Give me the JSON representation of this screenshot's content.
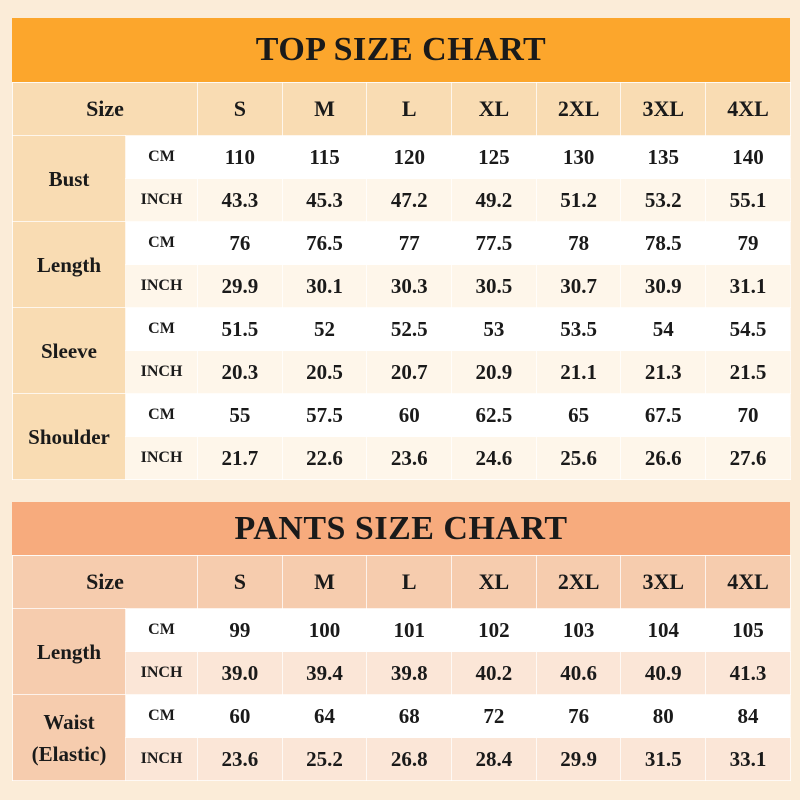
{
  "colors": {
    "top_header": "#fca62c",
    "top_accent": "#f9dcb3",
    "pants_header": "#f7ab7d",
    "pants_accent": "#f6ccae",
    "background": "#fbecd8"
  },
  "sizes": [
    "S",
    "M",
    "L",
    "XL",
    "2XL",
    "3XL",
    "4XL"
  ],
  "top": {
    "title": "TOP SIZE CHART",
    "size_label": "Size",
    "rows": [
      {
        "label": "Bust",
        "cm_unit": "CM",
        "inch_unit": "INCH",
        "cm": [
          "110",
          "115",
          "120",
          "125",
          "130",
          "135",
          "140"
        ],
        "inch": [
          "43.3",
          "45.3",
          "47.2",
          "49.2",
          "51.2",
          "53.2",
          "55.1"
        ]
      },
      {
        "label": "Length",
        "cm_unit": "CM",
        "inch_unit": "INCH",
        "cm": [
          "76",
          "76.5",
          "77",
          "77.5",
          "78",
          "78.5",
          "79"
        ],
        "inch": [
          "29.9",
          "30.1",
          "30.3",
          "30.5",
          "30.7",
          "30.9",
          "31.1"
        ]
      },
      {
        "label": "Sleeve",
        "cm_unit": "CM",
        "inch_unit": "INCH",
        "cm": [
          "51.5",
          "52",
          "52.5",
          "53",
          "53.5",
          "54",
          "54.5"
        ],
        "inch": [
          "20.3",
          "20.5",
          "20.7",
          "20.9",
          "21.1",
          "21.3",
          "21.5"
        ]
      },
      {
        "label": "Shoulder",
        "cm_unit": "CM",
        "inch_unit": "INCH",
        "cm": [
          "55",
          "57.5",
          "60",
          "62.5",
          "65",
          "67.5",
          "70"
        ],
        "inch": [
          "21.7",
          "22.6",
          "23.6",
          "24.6",
          "25.6",
          "26.6",
          "27.6"
        ]
      }
    ]
  },
  "pants": {
    "title": "PANTS SIZE CHART",
    "size_label": "Size",
    "rows": [
      {
        "label": "Length",
        "cm_unit": "CM",
        "inch_unit": "INCH",
        "cm": [
          "99",
          "100",
          "101",
          "102",
          "103",
          "104",
          "105"
        ],
        "inch": [
          "39.0",
          "39.4",
          "39.8",
          "40.2",
          "40.6",
          "40.9",
          "41.3"
        ]
      },
      {
        "label": "Waist\n(Elastic)",
        "cm_unit": "CM",
        "inch_unit": "INCH",
        "cm": [
          "60",
          "64",
          "68",
          "72",
          "76",
          "80",
          "84"
        ],
        "inch": [
          "23.6",
          "25.2",
          "26.8",
          "28.4",
          "29.9",
          "31.5",
          "33.1"
        ]
      }
    ]
  }
}
